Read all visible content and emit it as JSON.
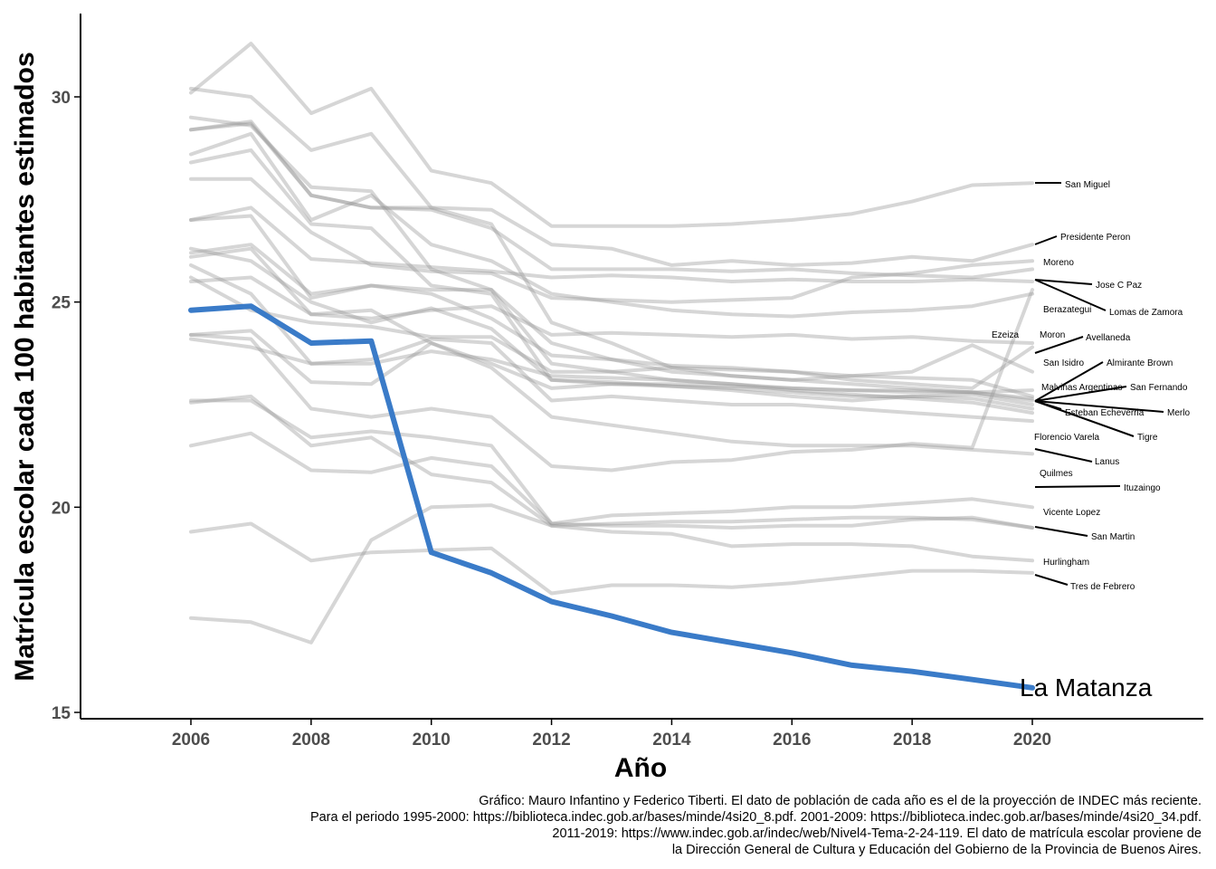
{
  "chart_data": {
    "type": "line",
    "xlabel": "Año",
    "ylabel": "Matrícula escolar cada 100 habitantes estimados",
    "xlim": [
      2004.2,
      2022.5
    ],
    "ylim": [
      14.8,
      32
    ],
    "xticks": [
      2006,
      2008,
      2010,
      2012,
      2014,
      2016,
      2018,
      2020
    ],
    "yticks": [
      15,
      20,
      25,
      30
    ],
    "x": [
      2006,
      2007,
      2008,
      2009,
      2010,
      2011,
      2012,
      2013,
      2014,
      2015,
      2016,
      2017,
      2018,
      2019,
      2020
    ],
    "highlight_color": "#3a7bc8",
    "background_color": "#999999",
    "grid": false,
    "series": [
      {
        "name": "La Matanza",
        "highlight": true,
        "values": [
          24.8,
          24.9,
          24.0,
          24.05,
          18.9,
          18.4,
          17.7,
          17.35,
          16.95,
          16.7,
          16.45,
          16.15,
          16.0,
          15.8,
          15.6
        ]
      },
      {
        "name": "San Miguel",
        "values": [
          30.1,
          31.3,
          29.6,
          30.2,
          28.2,
          27.9,
          26.85,
          26.85,
          26.85,
          26.9,
          27.0,
          27.15,
          27.45,
          27.85,
          27.9
        ]
      },
      {
        "name": "Presidente Peron",
        "values": [
          29.2,
          29.35,
          27.6,
          27.3,
          27.3,
          27.25,
          26.4,
          26.3,
          25.9,
          26.0,
          25.9,
          25.95,
          26.1,
          26.0,
          26.4
        ]
      },
      {
        "name": "Moreno",
        "values": [
          28.0,
          28.0,
          26.7,
          25.9,
          25.75,
          25.7,
          25.1,
          25.05,
          25.0,
          25.05,
          25.1,
          25.6,
          25.7,
          25.9,
          26.0
        ]
      },
      {
        "name": "Jose C Paz",
        "values": [
          27.0,
          27.3,
          26.05,
          25.95,
          25.85,
          25.75,
          25.6,
          25.65,
          25.6,
          25.5,
          25.55,
          25.5,
          25.5,
          25.55,
          25.5
        ]
      },
      {
        "name": "Berazategui",
        "values": [
          24.2,
          24.1,
          22.4,
          22.2,
          22.4,
          22.2,
          21.0,
          20.9,
          21.1,
          21.15,
          21.35,
          21.4,
          21.55,
          21.45,
          25.3
        ]
      },
      {
        "name": "Lomas de Zamora",
        "values": [
          28.6,
          29.1,
          27.0,
          27.6,
          26.4,
          26.0,
          25.2,
          25.0,
          24.8,
          24.7,
          24.65,
          24.75,
          24.8,
          24.9,
          25.2
        ]
      },
      {
        "name": "Avellaneda",
        "values": [
          26.2,
          26.4,
          25.2,
          25.4,
          25.2,
          24.6,
          23.7,
          23.6,
          23.45,
          23.4,
          23.3,
          23.2,
          23.15,
          23.1,
          22.7
        ]
      },
      {
        "name": "Moron",
        "values": [
          25.5,
          25.6,
          24.7,
          24.6,
          24.8,
          24.9,
          24.2,
          24.25,
          24.2,
          24.15,
          24.2,
          24.1,
          24.15,
          24.05,
          24.0
        ]
      },
      {
        "name": "Ezeiza",
        "values": [
          29.5,
          29.3,
          27.8,
          27.7,
          25.8,
          25.3,
          24.0,
          23.6,
          23.3,
          23.2,
          23.1,
          23.2,
          23.3,
          23.95,
          23.3
        ]
      },
      {
        "name": "San Isidro",
        "values": [
          25.6,
          24.8,
          24.5,
          24.4,
          24.15,
          24.15,
          23.3,
          23.3,
          23.4,
          23.35,
          23.3,
          23.1,
          23.0,
          22.9,
          23.9
        ]
      },
      {
        "name": "Almirante Brown",
        "values": [
          30.2,
          30.0,
          28.7,
          29.1,
          27.3,
          26.9,
          24.5,
          24.0,
          23.4,
          23.2,
          23.1,
          23.0,
          22.9,
          22.8,
          22.65
        ]
      },
      {
        "name": "Malvinas Argentinas",
        "values": [
          27.0,
          27.1,
          25.1,
          25.4,
          25.3,
          25.3,
          23.5,
          23.3,
          23.1,
          23.0,
          22.9,
          22.85,
          22.8,
          22.8,
          22.6
        ]
      },
      {
        "name": "San Fernando",
        "values": [
          26.3,
          26.0,
          25.0,
          24.5,
          24.85,
          24.35,
          23.1,
          23.05,
          22.95,
          22.9,
          22.8,
          22.7,
          22.7,
          22.75,
          22.5
        ]
      },
      {
        "name": "Merlo",
        "values": [
          28.4,
          28.7,
          26.9,
          26.8,
          25.4,
          25.2,
          23.1,
          23.0,
          22.95,
          22.85,
          22.7,
          22.6,
          22.7,
          22.65,
          22.4
        ]
      },
      {
        "name": "Esteban Echeverria",
        "values": [
          24.1,
          23.9,
          23.5,
          23.5,
          23.8,
          23.6,
          23.2,
          23.15,
          23.1,
          23.0,
          22.85,
          22.75,
          22.65,
          22.55,
          22.3
        ]
      },
      {
        "name": "Tigre",
        "values": [
          25.9,
          25.2,
          23.5,
          23.6,
          24.1,
          24.0,
          22.6,
          22.7,
          22.6,
          22.5,
          22.5,
          22.4,
          22.3,
          22.2,
          22.1
        ]
      },
      {
        "name": "Florencio Varela",
        "values": [
          21.5,
          21.8,
          20.9,
          20.85,
          21.2,
          21.0,
          19.6,
          19.55,
          19.55,
          19.5,
          19.55,
          19.55,
          19.7,
          19.75,
          19.5
        ]
      },
      {
        "name": "Lanus",
        "values": [
          24.2,
          24.3,
          23.05,
          23.0,
          24.0,
          23.4,
          22.2,
          22.0,
          21.8,
          21.6,
          21.5,
          21.5,
          21.5,
          21.4,
          21.3
        ]
      },
      {
        "name": "Quilmes",
        "values": [
          22.55,
          22.7,
          21.5,
          21.7,
          20.8,
          20.6,
          19.55,
          19.4,
          19.35,
          19.05,
          19.1,
          19.1,
          19.05,
          18.8,
          18.7
        ]
      },
      {
        "name": "Ituzaingo",
        "values": [
          19.4,
          19.6,
          18.7,
          18.9,
          18.95,
          19.0,
          17.9,
          18.1,
          18.1,
          18.05,
          18.15,
          18.3,
          18.45,
          18.45,
          18.4
        ]
      },
      {
        "name": "Vicente Lopez",
        "values": [
          22.6,
          22.6,
          21.7,
          21.85,
          21.7,
          21.5,
          19.6,
          19.8,
          19.85,
          19.9,
          20.0,
          20.0,
          20.1,
          20.2,
          20.0
        ]
      },
      {
        "name": "San Martin",
        "values": [
          17.3,
          17.2,
          16.7,
          19.2,
          20.0,
          20.05,
          19.55,
          19.6,
          19.65,
          19.65,
          19.7,
          19.75,
          19.75,
          19.7,
          19.5
        ]
      },
      {
        "name": "Hurlingham",
        "values": [
          29.2,
          29.4,
          27.6,
          27.3,
          27.25,
          26.8,
          25.8,
          25.8,
          25.8,
          25.75,
          25.8,
          25.7,
          25.65,
          25.6,
          25.8
        ]
      },
      {
        "name": "Tres de Febrero",
        "values": [
          26.1,
          26.3,
          24.7,
          24.8,
          24.0,
          23.5,
          22.9,
          23.0,
          23.0,
          22.95,
          22.9,
          22.85,
          22.85,
          22.8,
          22.85
        ]
      }
    ],
    "labels": [
      {
        "text": "San Miguel"
      },
      {
        "text": "Presidente Peron"
      },
      {
        "text": "Moreno"
      },
      {
        "text": "Jose C Paz"
      },
      {
        "text": "Berazategui"
      },
      {
        "text": "Lomas de Zamora"
      },
      {
        "text": "Ezeiza"
      },
      {
        "text": "Moron"
      },
      {
        "text": "Avellaneda"
      },
      {
        "text": "San Isidro"
      },
      {
        "text": "Almirante Brown"
      },
      {
        "text": "Malvinas Argentinas"
      },
      {
        "text": "San Fernando"
      },
      {
        "text": "Merlo"
      },
      {
        "text": "Esteban Echeverria"
      },
      {
        "text": "Tigre"
      },
      {
        "text": "Florencio Varela"
      },
      {
        "text": "Lanus"
      },
      {
        "text": "Quilmes"
      },
      {
        "text": "Ituzaingo"
      },
      {
        "text": "Vicente Lopez"
      },
      {
        "text": "San Martin"
      },
      {
        "text": "Hurlingham"
      },
      {
        "text": "Tres de Febrero"
      }
    ],
    "highlight_label": "La Matanza"
  },
  "caption": [
    "Gráfico: Mauro Infantino y Federico Tiberti. El dato de población de cada año es el de la proyección de INDEC más reciente.",
    "Para el periodo 1995-2000: https://biblioteca.indec.gob.ar/bases/minde/4si20_8.pdf. 2001-2009: https://biblioteca.indec.gob.ar/bases/minde/4si20_34.pdf.",
    "2011-2019: https://www.indec.gob.ar/indec/web/Nivel4-Tema-2-24-119. El dato de matrícula escolar proviene de",
    "la Dirección General de Cultura y Educación del Gobierno de la Provincia de Buenos Aires."
  ]
}
